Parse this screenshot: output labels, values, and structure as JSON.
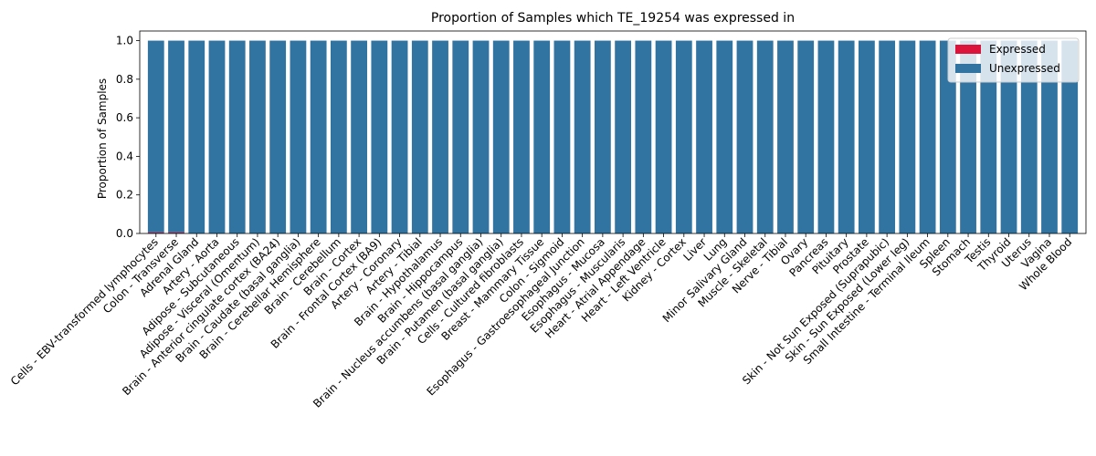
{
  "chart_data": {
    "type": "bar",
    "title": "Proportion of Samples which TE_19254 was expressed in",
    "xlabel": "",
    "ylabel": "Proportion of Samples",
    "ylim": [
      0,
      1.05
    ],
    "yticks": [
      "0.0",
      "0.2",
      "0.4",
      "0.6",
      "0.8",
      "1.0"
    ],
    "stacked": true,
    "legend_position": "top-right",
    "categories": [
      "Cells - EBV-transformed lymphocytes",
      "Colon - Transverse",
      "Adrenal Gland",
      "Artery - Aorta",
      "Adipose - Subcutaneous",
      "Adipose - Visceral (Omentum)",
      "Brain - Anterior cingulate cortex (BA24)",
      "Brain - Caudate (basal ganglia)",
      "Brain - Cerebellar Hemisphere",
      "Brain - Cerebellum",
      "Brain - Cortex",
      "Brain - Frontal Cortex (BA9)",
      "Artery - Coronary",
      "Artery - Tibial",
      "Brain - Hypothalamus",
      "Brain - Hippocampus",
      "Brain - Nucleus accumbens (basal ganglia)",
      "Brain - Putamen (basal ganglia)",
      "Cells - Cultured fibroblasts",
      "Breast - Mammary Tissue",
      "Colon - Sigmoid",
      "Esophagus - Gastroesophageal Junction",
      "Esophagus - Mucosa",
      "Esophagus - Muscularis",
      "Heart - Atrial Appendage",
      "Heart - Left Ventricle",
      "Kidney - Cortex",
      "Liver",
      "Lung",
      "Minor Salivary Gland",
      "Muscle - Skeletal",
      "Nerve - Tibial",
      "Ovary",
      "Pancreas",
      "Pituitary",
      "Prostate",
      "Skin - Not Sun Exposed (Suprapubic)",
      "Skin - Sun Exposed (Lower leg)",
      "Small Intestine - Terminal Ileum",
      "Spleen",
      "Stomach",
      "Testis",
      "Thyroid",
      "Uterus",
      "Vagina",
      "Whole Blood"
    ],
    "series": [
      {
        "name": "Expressed",
        "color": "#dc143c",
        "values": [
          0.005,
          0.005,
          0,
          0,
          0,
          0,
          0,
          0,
          0,
          0,
          0,
          0,
          0,
          0,
          0,
          0,
          0,
          0,
          0,
          0,
          0,
          0,
          0,
          0,
          0,
          0,
          0,
          0,
          0,
          0,
          0,
          0,
          0,
          0,
          0,
          0,
          0,
          0,
          0,
          0,
          0,
          0,
          0,
          0,
          0,
          0
        ]
      },
      {
        "name": "Unexpressed",
        "color": "#3274a1",
        "values": [
          0.995,
          0.995,
          1,
          1,
          1,
          1,
          1,
          1,
          1,
          1,
          1,
          1,
          1,
          1,
          1,
          1,
          1,
          1,
          1,
          1,
          1,
          1,
          1,
          1,
          1,
          1,
          1,
          1,
          1,
          1,
          1,
          1,
          1,
          1,
          1,
          1,
          1,
          1,
          1,
          1,
          1,
          1,
          1,
          1,
          1,
          1
        ]
      }
    ]
  }
}
